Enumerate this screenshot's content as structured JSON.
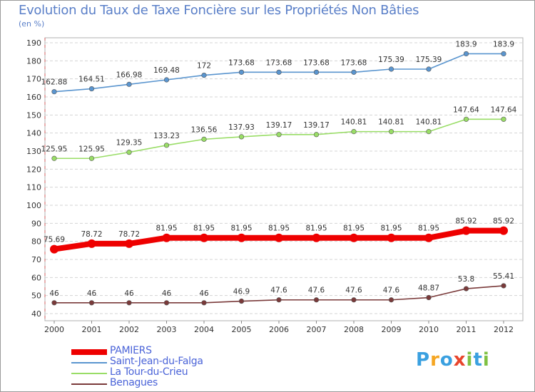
{
  "chart_data": {
    "type": "line",
    "title": "Evolution du Taux de Taxe Foncière sur les Propriétés Non Bâties",
    "unit": "(en %)",
    "xlabel": "",
    "ylabel": "(en %)",
    "ylim": [
      40,
      190
    ],
    "yticks": [
      40,
      50,
      60,
      70,
      80,
      90,
      100,
      110,
      120,
      130,
      140,
      150,
      160,
      170,
      180,
      190
    ],
    "categories": [
      "2000",
      "2001",
      "2002",
      "2003",
      "2004",
      "2005",
      "2006",
      "2007",
      "2008",
      "2009",
      "2010",
      "2011",
      "2012"
    ],
    "series": [
      {
        "name": "PAMIERS",
        "color": "#ee0000",
        "values": [
          75.69,
          78.72,
          78.72,
          81.95,
          81.95,
          81.95,
          81.95,
          81.95,
          81.95,
          81.95,
          81.95,
          85.92,
          85.92
        ],
        "labels": [
          "75.69",
          "78.72",
          "78.72",
          "81.95",
          "81.95",
          "81.95",
          "81.95",
          "81.95",
          "81.95",
          "81.95",
          "81.95",
          "85.92",
          "85.92"
        ]
      },
      {
        "name": "Saint-Jean-du-Falga",
        "color": "#5a95cf",
        "values": [
          162.88,
          164.51,
          166.98,
          169.48,
          172,
          173.68,
          173.68,
          173.68,
          173.68,
          175.39,
          175.39,
          183.9,
          183.9
        ],
        "labels": [
          "162.88",
          "164.51",
          "166.98",
          "169.48",
          "172",
          "173.68",
          "173.68",
          "173.68",
          "173.68",
          "175.39",
          "175.39",
          "183.9",
          "183.9"
        ]
      },
      {
        "name": "La Tour-du-Crieu",
        "color": "#99dd66",
        "values": [
          125.95,
          125.95,
          129.35,
          133.23,
          136.56,
          137.93,
          139.17,
          139.17,
          140.81,
          140.81,
          140.81,
          147.64,
          147.64
        ],
        "labels": [
          "125.95",
          "125.95",
          "129.35",
          "133.23",
          "136.56",
          "137.93",
          "139.17",
          "139.17",
          "140.81",
          "140.81",
          "140.81",
          "147.64",
          "147.64"
        ]
      },
      {
        "name": "Benagues",
        "color": "#7a3a3a",
        "values": [
          46,
          46,
          46,
          46,
          46,
          46.9,
          47.6,
          47.6,
          47.6,
          47.6,
          48.87,
          53.8,
          55.41
        ],
        "labels": [
          "46",
          "46",
          "46",
          "46",
          "46",
          "46.9",
          "47.6",
          "47.6",
          "47.6",
          "47.6",
          "48.87",
          "53.8",
          "55.41"
        ]
      }
    ],
    "legend_position": "bottom-left",
    "grid": "horizontal-dashed"
  },
  "logo": {
    "letters": [
      "P",
      "r",
      "o",
      "x",
      "i",
      "t",
      "i"
    ],
    "colors": [
      "#3aa0e0",
      "#f5a623",
      "#3aa0e0",
      "#e8452c",
      "#7fc143",
      "#3aa0e0",
      "#7fc143"
    ]
  }
}
